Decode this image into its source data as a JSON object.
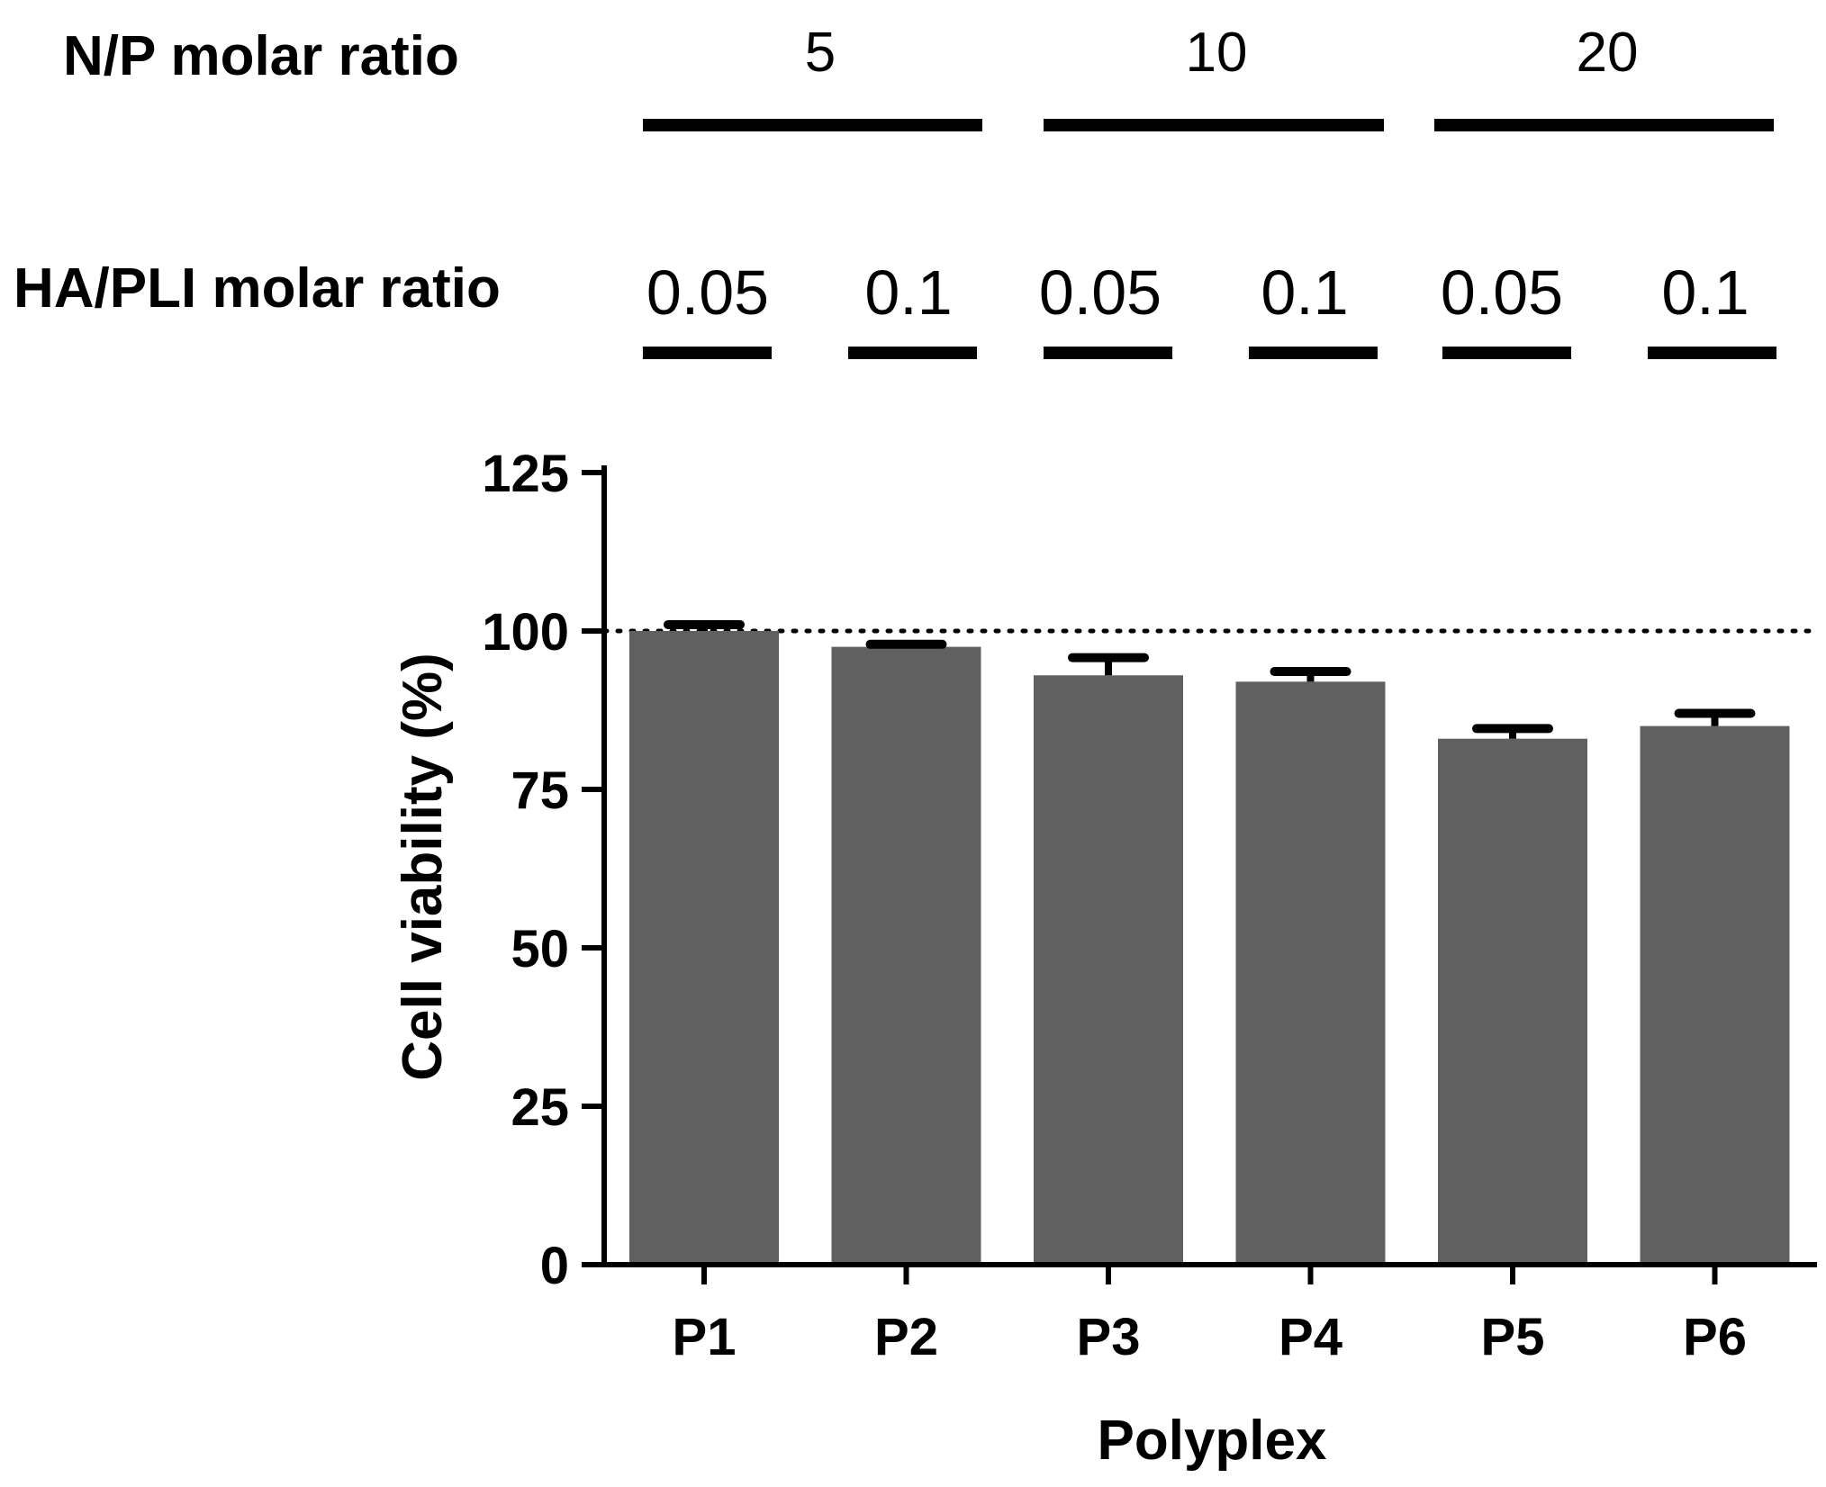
{
  "header": {
    "np_label": "N/P molar ratio",
    "np_groups": [
      "5",
      "10",
      "20"
    ],
    "ha_label": "HA/PLI molar ratio",
    "ha_groups": [
      "0.05",
      "0.1",
      "0.05",
      "0.1",
      "0.05",
      "0.1"
    ]
  },
  "chart_data": {
    "type": "bar",
    "categories": [
      "P1",
      "P2",
      "P3",
      "P4",
      "P5",
      "P6"
    ],
    "values": [
      100,
      97.5,
      93,
      92,
      83,
      85
    ],
    "errors": [
      1,
      0.4,
      2.8,
      1.6,
      1.6,
      2
    ],
    "xlabel": "Polyplex",
    "ylabel": "Cell viability (%)",
    "ylim": [
      0,
      125
    ],
    "yticks": [
      "0",
      "25",
      "50",
      "75",
      "100",
      "125"
    ],
    "reference_line": 100,
    "bar_color": "#606060",
    "grid": false
  }
}
